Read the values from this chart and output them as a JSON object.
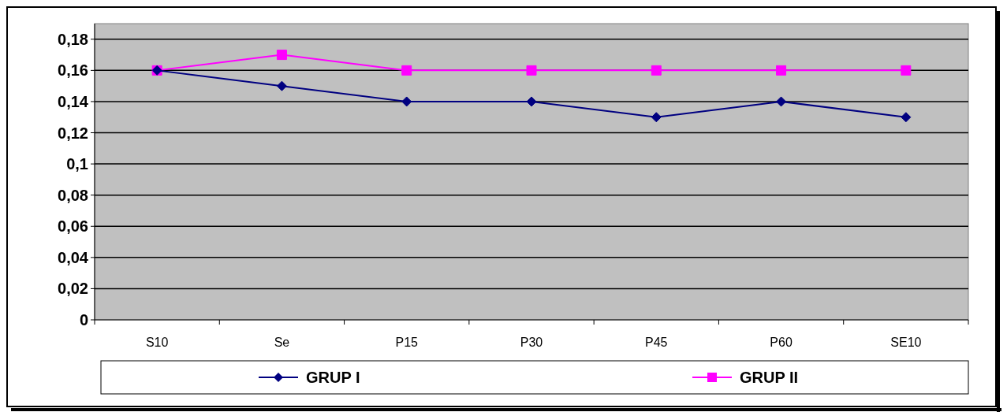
{
  "chart_data": {
    "type": "line",
    "categories": [
      "S10",
      "Se",
      "P15",
      "P30",
      "P45",
      "P60",
      "SE10"
    ],
    "series": [
      {
        "name": "GRUP I",
        "color": "#000080",
        "marker": "diamond",
        "values": [
          0.16,
          0.15,
          0.14,
          0.14,
          0.13,
          0.14,
          0.13
        ]
      },
      {
        "name": "GRUP II",
        "color": "#ff00ff",
        "marker": "square",
        "values": [
          0.16,
          0.17,
          0.16,
          0.16,
          0.16,
          0.16,
          0.16
        ]
      }
    ],
    "ylim": [
      0,
      0.19
    ],
    "yticks": [
      0,
      {
        "value": 0.02,
        "label": "0,02"
      },
      {
        "value": 0.04,
        "label": "0,04"
      },
      {
        "value": 0.06,
        "label": "0,06"
      },
      {
        "value": 0.08,
        "label": "0,08"
      },
      {
        "value": 0.1,
        "label": "0,1"
      },
      {
        "value": 0.12,
        "label": "0,12"
      },
      {
        "value": 0.14,
        "label": "0,14"
      },
      {
        "value": 0.16,
        "label": "0,16"
      },
      {
        "value": 0.18,
        "label": "0,18"
      }
    ],
    "grid": "y",
    "legend": "bottom"
  }
}
